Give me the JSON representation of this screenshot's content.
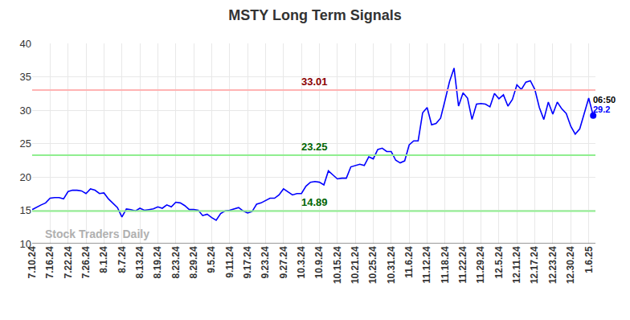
{
  "chart_data": {
    "type": "line",
    "title": "MSTY Long Term Signals",
    "categories": [
      "7.10.24",
      null,
      null,
      null,
      "7.16.24",
      null,
      null,
      null,
      "7.22.24",
      null,
      null,
      null,
      "7.26.24",
      null,
      null,
      null,
      "8.1.24",
      null,
      null,
      null,
      "8.7.24",
      null,
      null,
      null,
      "8.13.24",
      null,
      null,
      null,
      "8.19.24",
      null,
      null,
      null,
      "8.23.24",
      null,
      null,
      null,
      "8.29.24",
      null,
      null,
      null,
      "9.5.24",
      null,
      null,
      null,
      "9.11.24",
      null,
      null,
      null,
      "9.17.24",
      null,
      null,
      null,
      "9.23.24",
      null,
      null,
      null,
      "9.27.24",
      null,
      null,
      null,
      "10.3.24",
      null,
      null,
      null,
      "10.9.24",
      null,
      null,
      null,
      "10.15.24",
      null,
      null,
      null,
      "10.21.24",
      null,
      null,
      null,
      "10.25.24",
      null,
      null,
      null,
      "10.31.24",
      null,
      null,
      null,
      "11.6.24",
      null,
      null,
      null,
      "11.12.24",
      null,
      null,
      null,
      "11.18.24",
      null,
      null,
      null,
      "11.22.24",
      null,
      null,
      null,
      "11.29.24",
      null,
      null,
      null,
      "12.5.24",
      null,
      null,
      null,
      "12.11.24",
      null,
      null,
      null,
      "12.17.24",
      null,
      null,
      null,
      "12.23.24",
      null,
      null,
      null,
      "12.30.24",
      null,
      null,
      null,
      "1.6.25",
      null
    ],
    "values": [
      15.1,
      15.5,
      15.8,
      16.1,
      16.8,
      16.9,
      16.9,
      16.7,
      17.8,
      18.0,
      18.0,
      17.9,
      17.5,
      18.2,
      18.0,
      17.5,
      17.6,
      16.7,
      16.0,
      15.4,
      14.0,
      15.2,
      15.1,
      14.9,
      15.3,
      15.0,
      15.1,
      15.2,
      15.5,
      15.3,
      15.8,
      15.5,
      16.2,
      16.1,
      15.7,
      15.1,
      15.1,
      15.0,
      14.2,
      14.4,
      13.9,
      13.5,
      14.5,
      14.9,
      15.0,
      15.2,
      15.4,
      14.9,
      14.6,
      14.8,
      15.9,
      16.1,
      16.5,
      16.8,
      16.8,
      17.3,
      18.2,
      17.7,
      17.3,
      17.5,
      17.5,
      18.6,
      19.2,
      19.3,
      19.2,
      18.8,
      20.9,
      20.3,
      19.7,
      19.8,
      19.8,
      21.5,
      21.7,
      21.9,
      21.7,
      23.0,
      22.7,
      24.1,
      24.3,
      23.8,
      23.8,
      22.5,
      22.1,
      22.4,
      24.8,
      25.4,
      25.4,
      29.6,
      30.4,
      27.8,
      28.0,
      28.8,
      31.5,
      34.3,
      36.3,
      30.6,
      32.6,
      31.8,
      28.6,
      30.9,
      31.0,
      30.9,
      30.5,
      32.5,
      31.7,
      32.3,
      30.6,
      31.6,
      33.8,
      33.1,
      34.2,
      34.4,
      33.1,
      30.4,
      28.6,
      31.2,
      29.4,
      31.2,
      30.2,
      29.5,
      27.6,
      26.4,
      27.2,
      29.6,
      31.8,
      29.2
    ],
    "color": "#0000ff",
    "ylim": [
      10,
      40
    ],
    "yticks": [
      10,
      15,
      20,
      25,
      30,
      35,
      40
    ],
    "grid": true,
    "levels": [
      {
        "value": 33.01,
        "color": "#ffb3b3",
        "label_color": "#8b0000"
      },
      {
        "value": 23.25,
        "color": "#90ee90",
        "label_color": "#006400"
      },
      {
        "value": 14.89,
        "color": "#90ee90",
        "label_color": "#006400"
      }
    ],
    "time_label": "06:50",
    "watermark": "Stock Traders Daily"
  }
}
